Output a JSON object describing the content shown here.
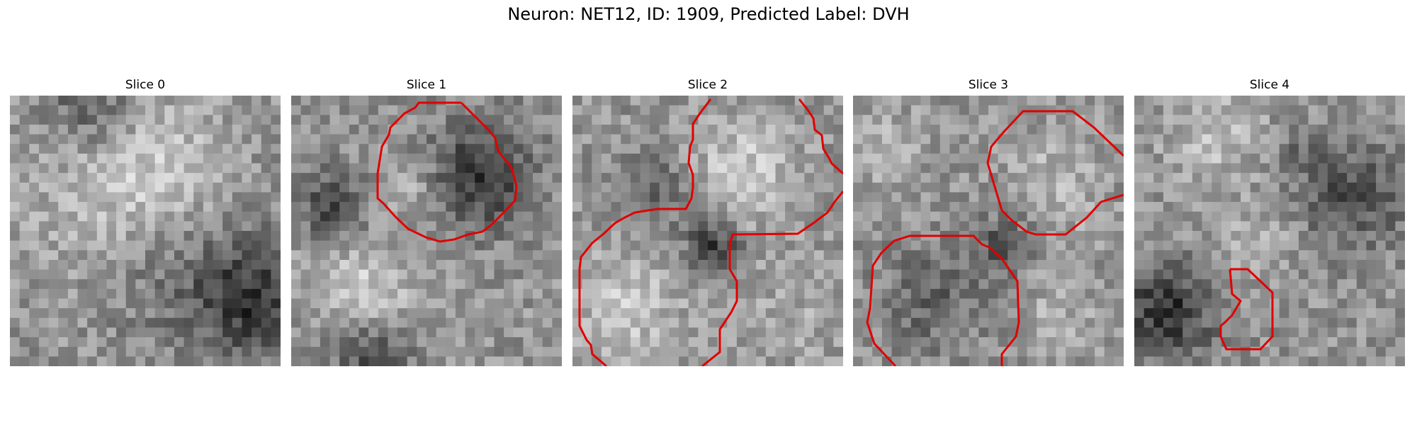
{
  "figure": {
    "title": "Neuron: NET12, ID: 1909, Predicted Label: DVH"
  },
  "colors": {
    "contour": "#e00000",
    "background": "#ffffff"
  },
  "slices": [
    {
      "label": "Slice 0",
      "has_contour": false
    },
    {
      "label": "Slice 1",
      "has_contour": true
    },
    {
      "label": "Slice 2",
      "has_contour": true
    },
    {
      "label": "Slice 3",
      "has_contour": true
    },
    {
      "label": "Slice 4",
      "has_contour": true
    }
  ]
}
